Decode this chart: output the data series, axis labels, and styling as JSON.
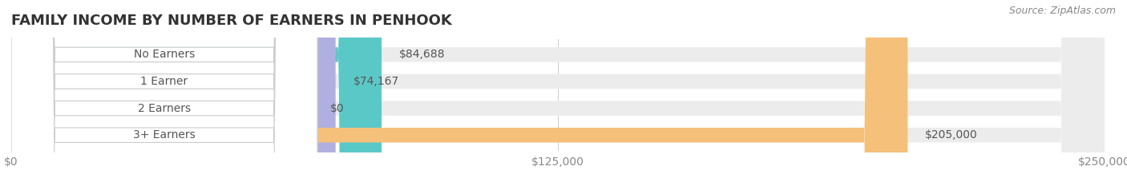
{
  "title": "FAMILY INCOME BY NUMBER OF EARNERS IN PENHOOK",
  "source": "Source: ZipAtlas.com",
  "categories": [
    "No Earners",
    "1 Earner",
    "2 Earners",
    "3+ Earners"
  ],
  "values": [
    84688,
    74167,
    0,
    205000
  ],
  "bar_colors": [
    "#5bc8c8",
    "#b0b0e0",
    "#f4a0b8",
    "#f5c07a"
  ],
  "background_color": "#ffffff",
  "xlim": [
    0,
    250000
  ],
  "xticks": [
    0,
    125000,
    250000
  ],
  "xtick_labels": [
    "$0",
    "$125,000",
    "$250,000"
  ],
  "value_labels": [
    "$84,688",
    "$74,167",
    "$0",
    "$205,000"
  ],
  "title_fontsize": 13,
  "label_fontsize": 10,
  "source_fontsize": 9,
  "bar_height": 0.55
}
